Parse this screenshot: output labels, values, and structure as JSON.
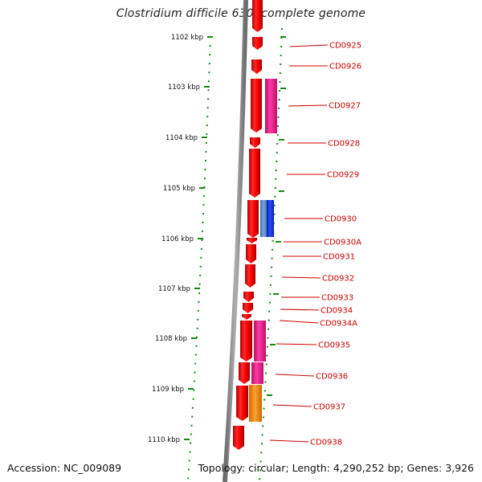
{
  "title": "Clostridium difficile 630, complete genome",
  "footer": {
    "accession": "Accession: NC_009089",
    "summary": "Topology: circular; Length: 4,290,252 bp; Genes: 3,926"
  },
  "colors": {
    "forward_gene": "#ff0000",
    "magenta_gene": "#ff1493",
    "blue_gene": "#1e3cff",
    "steelblue_gene": "#5b8fd6",
    "orange_gene": "#ff8c00",
    "tick": "#138a13",
    "label": "#cc0000",
    "backbone": "#888888"
  },
  "ticks": [
    "1102 kbp",
    "1103 kbp",
    "1104 kbp",
    "1105 kbp",
    "1106 kbp",
    "1107 kbp",
    "1108 kbp",
    "1109 kbp",
    "1110 kbp"
  ],
  "genes": [
    {
      "label": "CD0925"
    },
    {
      "label": "CD0926"
    },
    {
      "label": "CD0927"
    },
    {
      "label": "CD0928"
    },
    {
      "label": "CD0929"
    },
    {
      "label": "CD0930"
    },
    {
      "label": "CD0930A"
    },
    {
      "label": "CD0931"
    },
    {
      "label": "CD0932"
    },
    {
      "label": "CD0933"
    },
    {
      "label": "CD0934"
    },
    {
      "label": "CD0934A"
    },
    {
      "label": "CD0935"
    },
    {
      "label": "CD0936"
    },
    {
      "label": "CD0937"
    },
    {
      "label": "CD0938"
    }
  ]
}
